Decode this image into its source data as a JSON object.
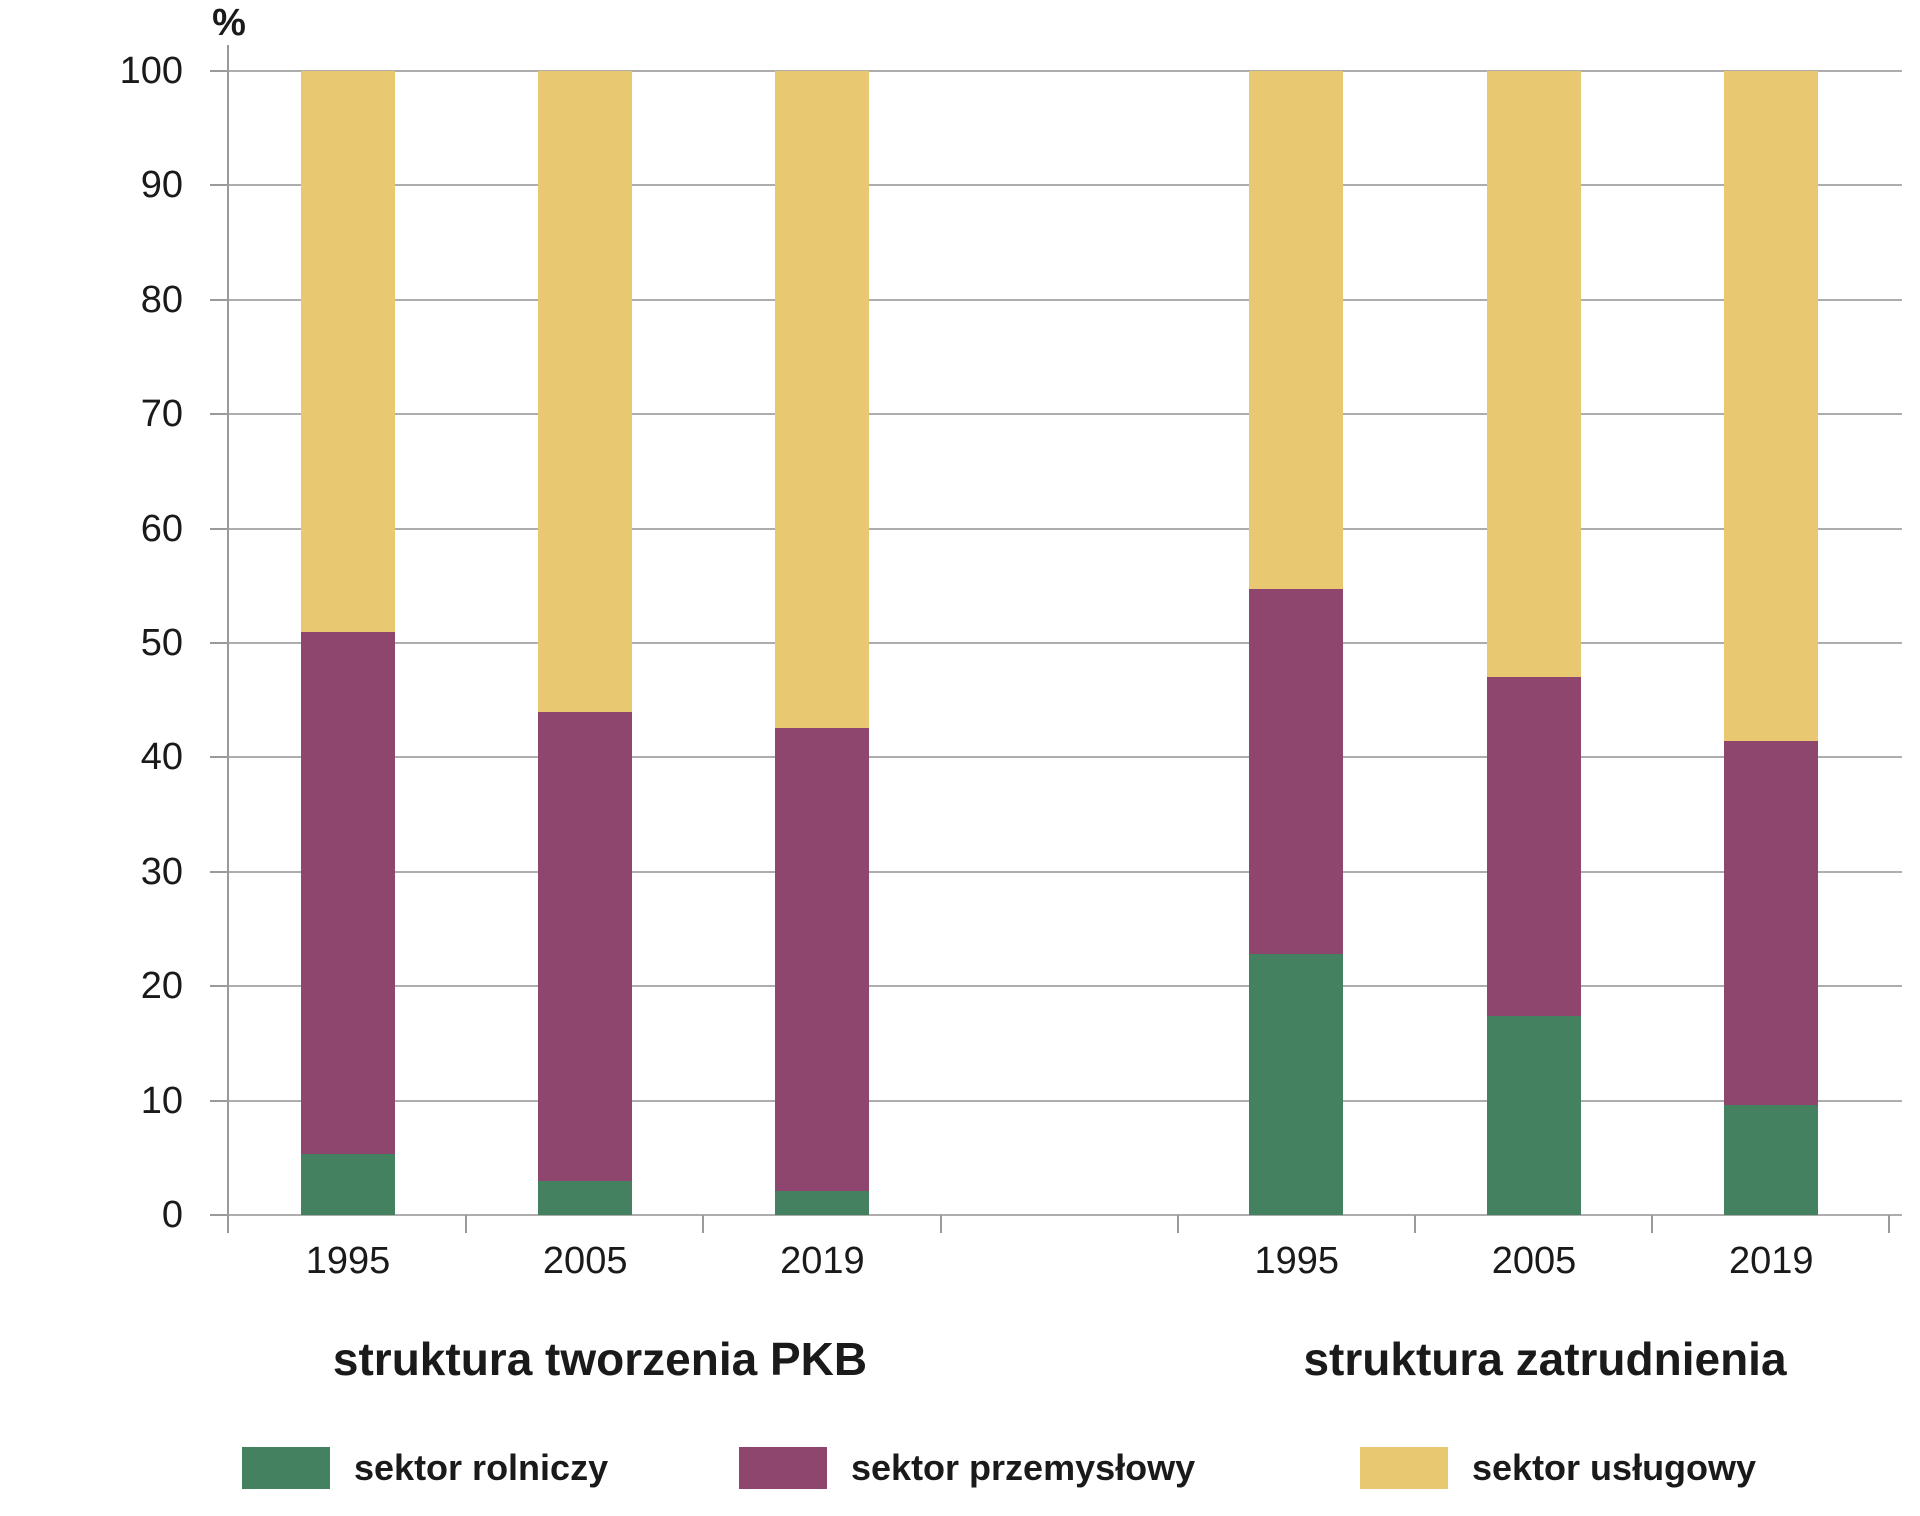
{
  "chart_data": {
    "type": "bar",
    "stacked": true,
    "unit_label": "%",
    "ylim": [
      0,
      100
    ],
    "yticks": [
      0,
      10,
      20,
      30,
      40,
      50,
      60,
      70,
      80,
      90,
      100
    ],
    "grid": "horizontal",
    "legend_position": "bottom",
    "groups": [
      {
        "title": "struktura tworzenia PKB",
        "categories": [
          "1995",
          "2005",
          "2019"
        ],
        "series": [
          {
            "name": "sektor rolniczy",
            "color": "#438161",
            "values": [
              5.3,
              3.0,
              2.1
            ]
          },
          {
            "name": "sektor przemysłowy",
            "color": "#8F466E",
            "values": [
              45.7,
              41.0,
              40.5
            ]
          },
          {
            "name": "sektor usługowy",
            "color": "#E9C872",
            "values": [
              49.0,
              56.0,
              57.4
            ]
          }
        ]
      },
      {
        "title": "struktura zatrudnienia",
        "categories": [
          "1995",
          "2005",
          "2019"
        ],
        "series": [
          {
            "name": "sektor rolniczy",
            "color": "#438161",
            "values": [
              22.8,
              17.4,
              9.6
            ]
          },
          {
            "name": "sektor przemysłowy",
            "color": "#8F466E",
            "values": [
              31.9,
              29.6,
              31.8
            ]
          },
          {
            "name": "sektor usługowy",
            "color": "#E9C872",
            "values": [
              45.3,
              53.0,
              58.6
            ]
          }
        ]
      }
    ],
    "legend": [
      {
        "label": "sektor rolniczy",
        "color": "#438161"
      },
      {
        "label": "sektor przemysłowy",
        "color": "#8F466E"
      },
      {
        "label": "sektor usługowy",
        "color": "#E9C872"
      }
    ]
  },
  "colors": {
    "background": "#FFFFFF",
    "gridline": "#ADADAD",
    "axis": "#9A9A9A",
    "text": "#1A1A1A"
  }
}
